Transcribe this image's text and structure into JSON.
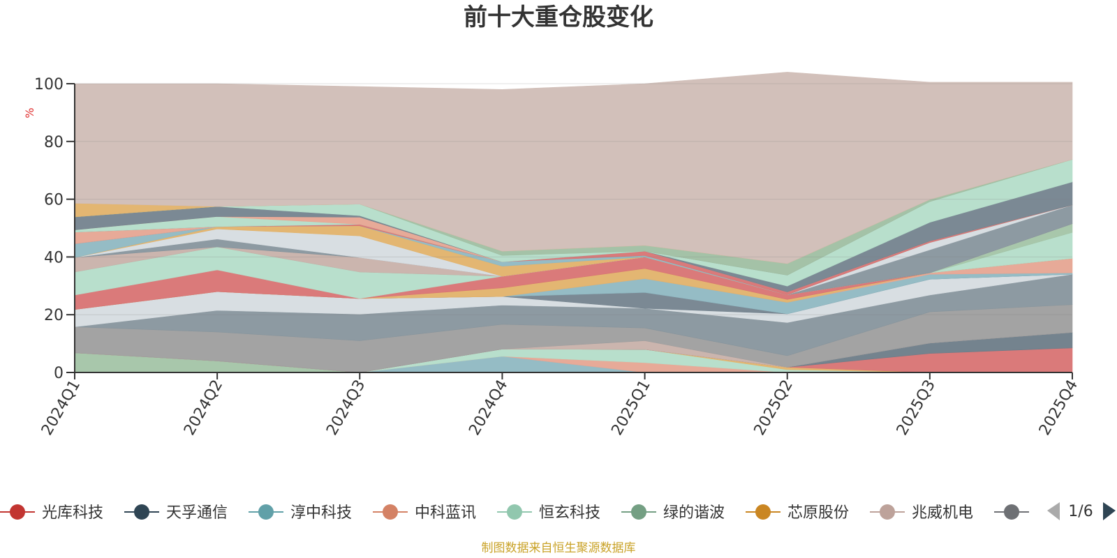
{
  "chart_data": {
    "type": "area",
    "stacked": true,
    "title": "前十大重仓股变化",
    "ylabel": "%",
    "ylim": [
      0,
      100
    ],
    "yticks": [
      0,
      20,
      40,
      60,
      80,
      100
    ],
    "grid": true,
    "categories": [
      "2024Q1",
      "2024Q2",
      "2024Q3",
      "2024Q4",
      "2025Q1",
      "2025Q2",
      "2025Q3",
      "2025Q4"
    ],
    "series": [
      {
        "name": "绿的谐波",
        "color": "#a3c4a6",
        "values": [
          6.8,
          4.0,
          0,
          0,
          0,
          0,
          0,
          0
        ]
      },
      {
        "name": "淳中科技",
        "color": "#8fb8c2",
        "values": [
          0,
          0,
          0,
          5.6,
          0,
          0,
          0,
          0
        ]
      },
      {
        "name": "中科蓝讯",
        "color": "#e6a592",
        "values": [
          0,
          0,
          0,
          0,
          3.4,
          0,
          0,
          0
        ]
      },
      {
        "name": "恒玄科技",
        "color": "#b4ddc9",
        "values": [
          0,
          0,
          0,
          2.5,
          4.6,
          1.0,
          0,
          0
        ]
      },
      {
        "name": "芯原股份",
        "color": "#e2b26a",
        "values": [
          0,
          0,
          0,
          0,
          0,
          0.8,
          0,
          0
        ]
      },
      {
        "name": "光库科技",
        "color": "#d87373",
        "values": [
          0,
          0,
          0,
          0,
          0,
          0,
          6.6,
          8.5
        ]
      },
      {
        "name": "天孚通信",
        "color": "#6d7c88",
        "values": [
          0,
          0,
          0,
          0,
          0,
          0,
          3.6,
          5.4
        ]
      },
      {
        "name": "兆威机电",
        "color": "#c8b1aa",
        "values": [
          0,
          0,
          0,
          0,
          3.0,
          0,
          0,
          0
        ]
      },
      {
        "name": "",
        "color": "#9e9e9e",
        "values": [
          9.0,
          10.0,
          11.0,
          8.6,
          4.4,
          4.0,
          10.8,
          9.6
        ]
      },
      {
        "name": "",
        "color": "#87959d",
        "values": [
          0,
          7.5,
          9.2,
          6.6,
          6.8,
          11.5,
          5.8,
          10.5
        ]
      },
      {
        "name": "",
        "color": "#d6dce0",
        "values": [
          6.0,
          6.5,
          5.4,
          3.0,
          0,
          3.0,
          5.5,
          0
        ]
      },
      {
        "name": "",
        "color": "#74838e",
        "values": [
          0,
          0,
          0,
          0,
          5.5,
          0,
          0,
          0
        ]
      },
      {
        "name": "",
        "color": "#8fb8c2",
        "values": [
          0,
          0,
          0,
          0,
          4.8,
          4.0,
          1.7,
          0.5
        ]
      },
      {
        "name": "",
        "color": "#e6a592",
        "values": [
          0,
          0,
          0,
          0,
          0,
          0,
          0.5,
          5.0
        ]
      },
      {
        "name": "",
        "color": "#e2b26a",
        "values": [
          0,
          0,
          0,
          3.0,
          3.5,
          1.0,
          0,
          0
        ]
      },
      {
        "name": "",
        "color": "#d87373",
        "values": [
          5.0,
          7.5,
          0,
          4.0,
          4.0,
          1.6,
          0,
          0
        ]
      },
      {
        "name": "",
        "color": "#b4ddc9",
        "values": [
          8.0,
          8.0,
          9.2,
          0,
          0,
          0,
          0,
          9.0
        ]
      },
      {
        "name": "",
        "color": "#a3c4a6",
        "values": [
          0,
          0,
          0,
          0,
          0,
          0,
          0,
          3.0
        ]
      },
      {
        "name": "",
        "color": "#c8b1aa",
        "values": [
          5.0,
          0,
          5.0,
          0,
          0,
          0,
          0,
          0
        ]
      },
      {
        "name": "",
        "color": "#87959d",
        "values": [
          0,
          2.7,
          0,
          0,
          0,
          0,
          8.0,
          6.5
        ]
      },
      {
        "name": "",
        "color": "#d6dce0",
        "values": [
          0,
          3.5,
          7.5,
          0,
          0,
          0,
          2.5,
          0
        ]
      },
      {
        "name": "",
        "color": "#e2b26a",
        "values": [
          0,
          0.8,
          3.5,
          3.5,
          0,
          0,
          0,
          0
        ]
      },
      {
        "name": "",
        "color": "#8fb8c2",
        "values": [
          4.8,
          0,
          0,
          1.5,
          0.5,
          0,
          0,
          0
        ]
      },
      {
        "name": "",
        "color": "#d87373",
        "values": [
          0,
          0,
          0.5,
          0,
          1.5,
          1.0,
          0.5,
          0
        ]
      },
      {
        "name": "",
        "color": "#e6a592",
        "values": [
          4.0,
          0,
          0,
          0,
          0,
          0,
          0,
          0
        ]
      },
      {
        "name": "",
        "color": "#74838e",
        "values": [
          0,
          0,
          0,
          0,
          0,
          2.0,
          6.5,
          8.0
        ]
      },
      {
        "name": "",
        "color": "#b4ddc9",
        "values": [
          0.8,
          3.5,
          0,
          0,
          0,
          3.8,
          7.2,
          7.8
        ]
      },
      {
        "name": "",
        "color": "#e6a592",
        "values": [
          0,
          0,
          2.5,
          0,
          0,
          0,
          0,
          0
        ]
      },
      {
        "name": "",
        "color": "#74838e",
        "values": [
          4.5,
          3.5,
          0.5,
          0,
          0,
          0,
          0,
          0
        ]
      },
      {
        "name": "",
        "color": "#b4ddc9",
        "values": [
          0,
          0,
          4.0,
          2.2,
          0,
          0,
          0,
          0
        ]
      },
      {
        "name": "",
        "color": "#9fbfa2",
        "values": [
          0,
          0,
          0,
          1.5,
          2.0,
          4.0,
          0.7,
          0
        ]
      },
      {
        "name": "",
        "color": "#e2b26a",
        "values": [
          4.7,
          0,
          0,
          0,
          0,
          0,
          0,
          0
        ]
      },
      {
        "name": "",
        "color": "#d0bdb6",
        "values": [
          41.4,
          42.5,
          40.7,
          56.0,
          56.0,
          66.3,
          40.6,
          26.7
        ]
      }
    ]
  },
  "legend": {
    "items": [
      {
        "name": "光库科技",
        "color": "#c23531"
      },
      {
        "name": "天孚通信",
        "color": "#2f4554"
      },
      {
        "name": "淳中科技",
        "color": "#61a0a8"
      },
      {
        "name": "中科蓝讯",
        "color": "#d48265"
      },
      {
        "name": "恒玄科技",
        "color": "#91c7ae"
      },
      {
        "name": "绿的谐波",
        "color": "#749f83"
      },
      {
        "name": "芯原股份",
        "color": "#ca8622"
      },
      {
        "name": "兆威机电",
        "color": "#bda29a"
      },
      {
        "name": "",
        "color": "#6e7074"
      }
    ],
    "page": "1/6"
  },
  "source_note": "制图数据来自恒生聚源数据库"
}
